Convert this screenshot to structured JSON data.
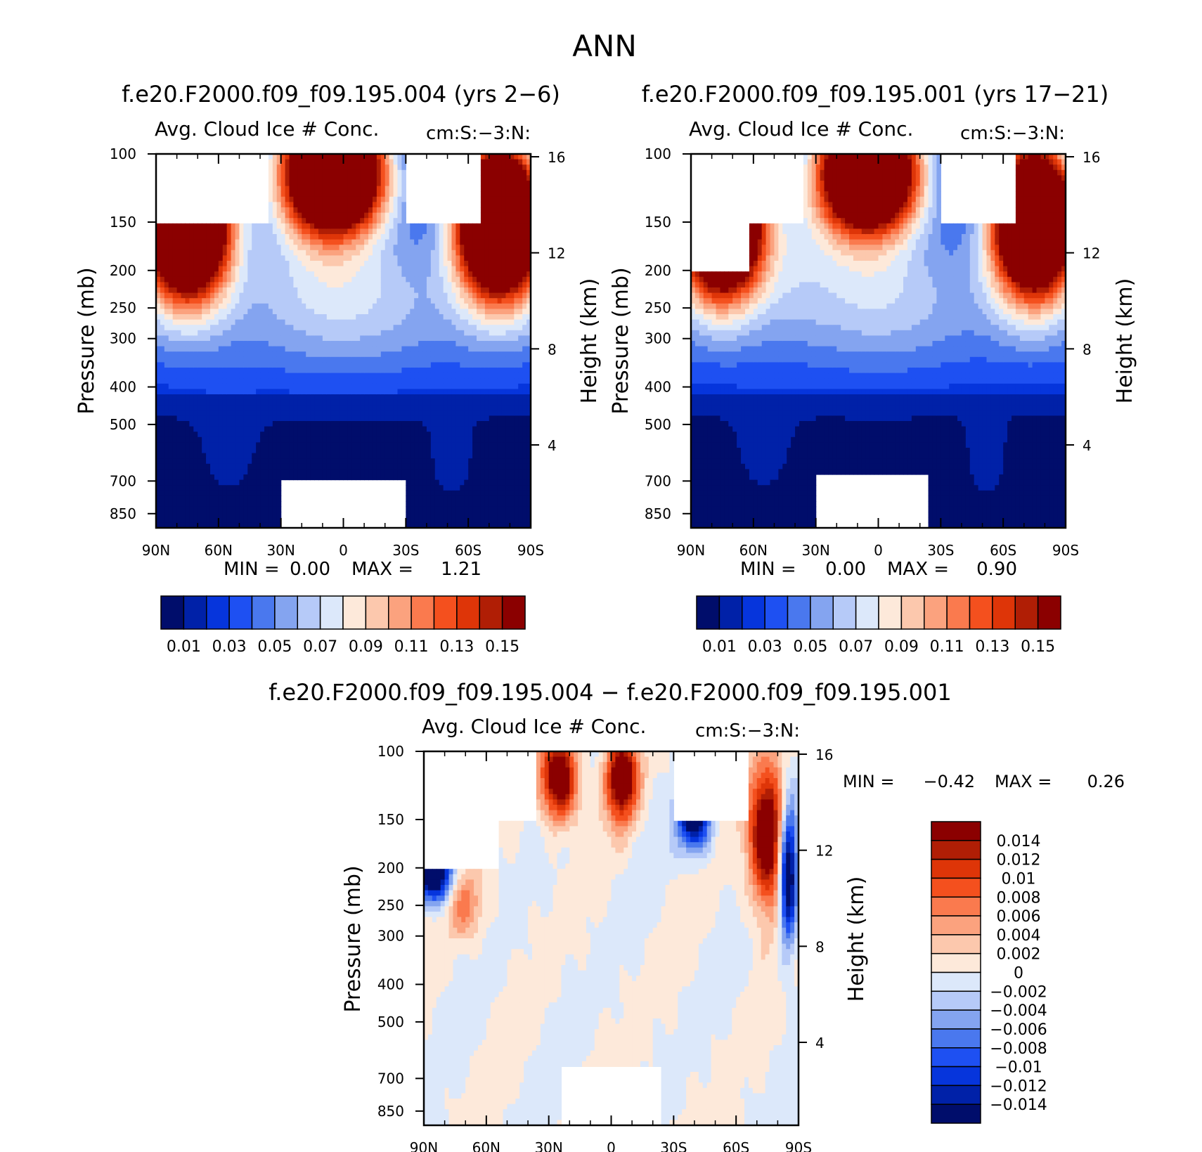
{
  "figure": {
    "title": "ANN"
  },
  "chart_data": [
    {
      "type": "heatmap",
      "title": "f.e20.F2000.f09_f09.195.004 (yrs 2-6)",
      "subtitle_left": "Avg. Cloud Ice # Conc.",
      "subtitle_right": "cm:S:-3:N:",
      "ylabel": "Pressure (mb)",
      "ylabel_right": "Height (km)",
      "xticks": [
        "90N",
        "60N",
        "30N",
        "0",
        "30S",
        "60S",
        "90S"
      ],
      "yticks": [
        "100",
        "150",
        "200",
        "250",
        "300",
        "400",
        "500",
        "700",
        "850"
      ],
      "yticks_right": [
        "16",
        "12",
        "8",
        "4"
      ],
      "min_max_text": {
        "min_label": "MIN =",
        "min": "0.00",
        "max_label": "MAX =",
        "max": "1.21"
      },
      "colorbar": {
        "labels": [
          "0.01",
          "0.03",
          "0.05",
          "0.07",
          "0.09",
          "0.11",
          "0.13",
          "0.15"
        ],
        "colors": [
          "#000d6b",
          "#0021a8",
          "#0635dc",
          "#1e50f2",
          "#4a78ee",
          "#84a4f0",
          "#b6caf8",
          "#dce8fa",
          "#fde9da",
          "#fcc8ad",
          "#fba27e",
          "#fa7a4e",
          "#f4501e",
          "#de3508",
          "#b01e05",
          "#8b0000"
        ]
      },
      "ylim_mb": [
        100,
        925
      ],
      "zlim": [
        0.0,
        1.21
      ]
    },
    {
      "type": "heatmap",
      "title": "f.e20.F2000.f09_f09.195.001 (yrs 17-21)",
      "subtitle_left": "Avg. Cloud Ice # Conc.",
      "subtitle_right": "cm:S:-3:N:",
      "ylabel": "Pressure (mb)",
      "ylabel_right": "Height (km)",
      "xticks": [
        "90N",
        "60N",
        "30N",
        "0",
        "30S",
        "60S",
        "90S"
      ],
      "yticks": [
        "100",
        "150",
        "200",
        "250",
        "300",
        "400",
        "500",
        "700",
        "850"
      ],
      "yticks_right": [
        "16",
        "12",
        "8",
        "4"
      ],
      "min_max_text": {
        "min_label": "MIN =",
        "min": "0.00",
        "max_label": "MAX =",
        "max": "0.90"
      },
      "colorbar": {
        "labels": [
          "0.01",
          "0.03",
          "0.05",
          "0.07",
          "0.09",
          "0.11",
          "0.13",
          "0.15"
        ],
        "colors": [
          "#000d6b",
          "#0021a8",
          "#0635dc",
          "#1e50f2",
          "#4a78ee",
          "#84a4f0",
          "#b6caf8",
          "#dce8fa",
          "#fde9da",
          "#fcc8ad",
          "#fba27e",
          "#fa7a4e",
          "#f4501e",
          "#de3508",
          "#b01e05",
          "#8b0000"
        ]
      },
      "ylim_mb": [
        100,
        925
      ],
      "zlim": [
        0.0,
        0.9
      ]
    },
    {
      "type": "heatmap",
      "title": "f.e20.F2000.f09_f09.195.004 - f.e20.F2000.f09_f09.195.001",
      "subtitle_left": "Avg. Cloud Ice # Conc.",
      "subtitle_right": "cm:S:-3:N:",
      "ylabel": "Pressure (mb)",
      "ylabel_right": "Height (km)",
      "xticks": [
        "90N",
        "60N",
        "30N",
        "0",
        "30S",
        "60S",
        "90S"
      ],
      "yticks": [
        "100",
        "150",
        "200",
        "250",
        "300",
        "400",
        "500",
        "700",
        "850"
      ],
      "yticks_right": [
        "16",
        "12",
        "8",
        "4"
      ],
      "min_max_text": {
        "min_label": "MIN =",
        "min": "-0.42",
        "max_label": "MAX =",
        "max": "0.26"
      },
      "colorbar": {
        "labels": [
          "0.014",
          "0.012",
          "0.01",
          "0.008",
          "0.006",
          "0.004",
          "0.002",
          "0",
          "-0.002",
          "-0.004",
          "-0.006",
          "-0.008",
          "-0.01",
          "-0.012",
          "-0.014"
        ],
        "colors": [
          "#8b0000",
          "#b01e05",
          "#de3508",
          "#f4501e",
          "#fa7a4e",
          "#fba27e",
          "#fcc8ad",
          "#fde9da",
          "#dce8fa",
          "#b6caf8",
          "#84a4f0",
          "#4a78ee",
          "#1e50f2",
          "#0635dc",
          "#0021a8",
          "#000d6b"
        ]
      },
      "ylim_mb": [
        100,
        925
      ],
      "zlim": [
        -0.42,
        0.26
      ]
    }
  ]
}
